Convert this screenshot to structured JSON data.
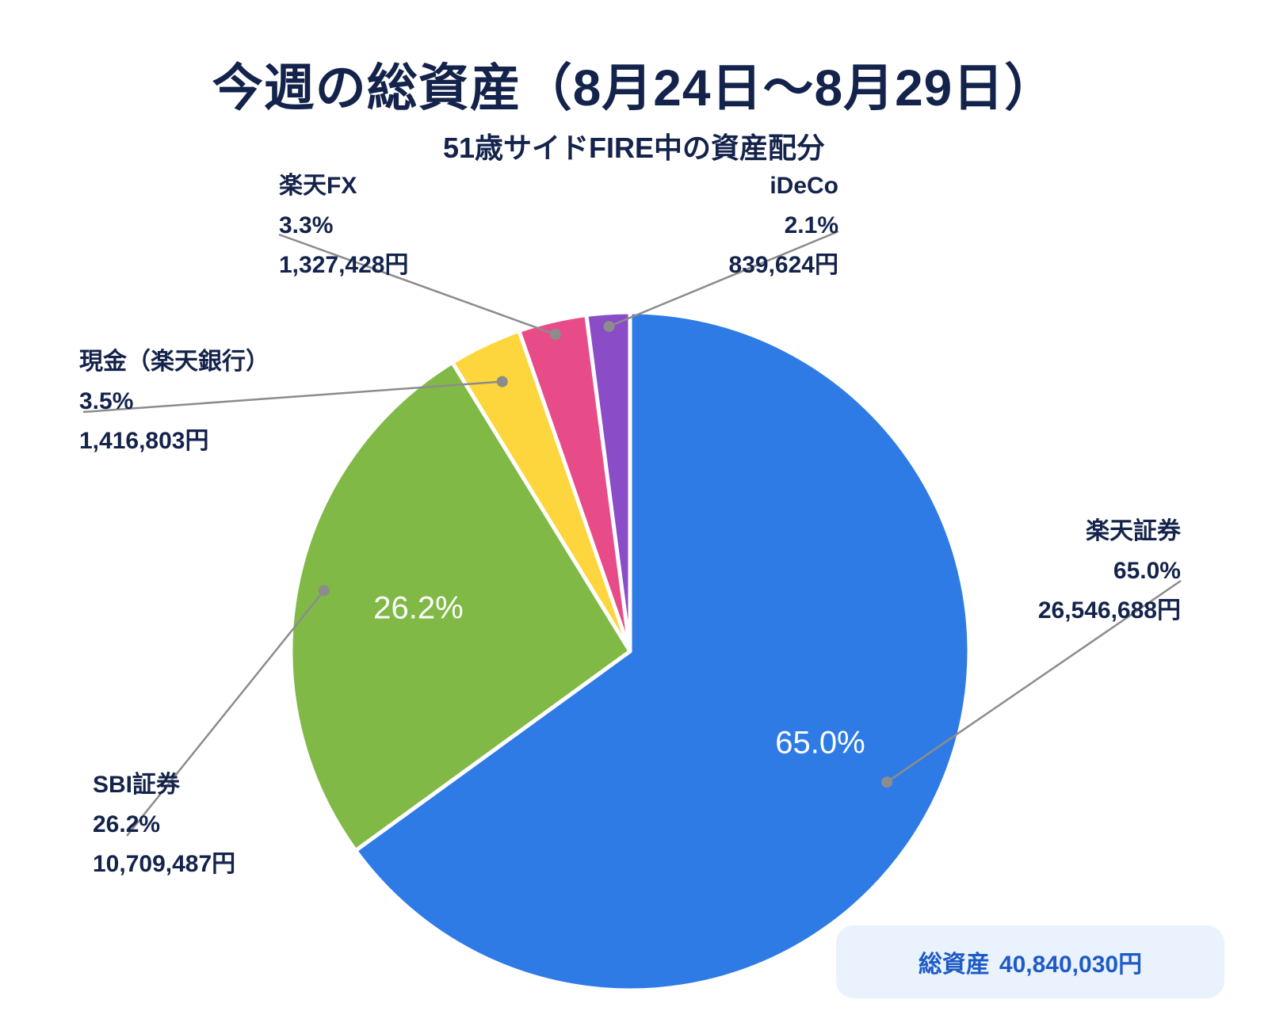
{
  "header": {
    "title": "今週の総資産（8月24日〜8月29日）",
    "subtitle": "51歳サイドFIRE中の資産配分"
  },
  "summary": {
    "total_label": "総資産",
    "total_value": "40,840,030円"
  },
  "chart_data": {
    "type": "pie",
    "title": "今週の総資産（8月24日〜8月29日）",
    "subtitle": "51歳サイドFIRE中の資産配分",
    "start_angle": "12 o'clock",
    "direction": "clockwise",
    "slices": [
      {
        "label": "楽天証券",
        "value": 26546688,
        "amount": "26,546,688円",
        "percent": 65.0,
        "percent_text": "65.0%",
        "color": "#2f7be6",
        "inner_label": "65.0%"
      },
      {
        "label": "SBI証券",
        "value": 10709487,
        "amount": "10,709,487円",
        "percent": 26.2,
        "percent_text": "26.2%",
        "color": "#80b946",
        "inner_label": "26.2%"
      },
      {
        "label": "現金（楽天銀行）",
        "value": 1416803,
        "amount": "1,416,803円",
        "percent": 3.5,
        "percent_text": "3.5%",
        "color": "#fdd53c",
        "inner_label": ""
      },
      {
        "label": "楽天FX",
        "value": 1327428,
        "amount": "1,327,428円",
        "percent": 3.3,
        "percent_text": "3.3%",
        "color": "#e84c88",
        "inner_label": ""
      },
      {
        "label": "iDeCo",
        "value": 839624,
        "amount": "839,624円",
        "percent": 2.1,
        "percent_text": "2.1%",
        "color": "#8a4cc7",
        "inner_label": ""
      }
    ],
    "leader_line_color": "#8c8c8c"
  }
}
